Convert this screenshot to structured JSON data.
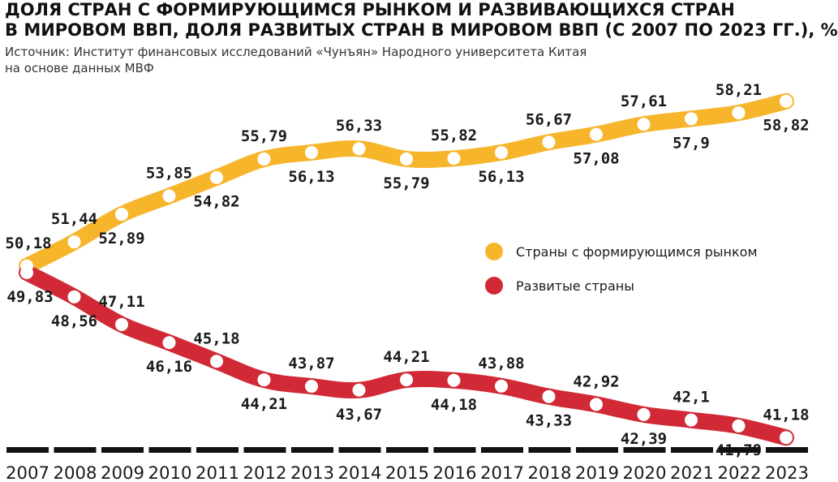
{
  "title_lines": [
    "ДОЛЯ СТРАН С ФОРМИРУЮЩИМСЯ РЫНКОМ И РАЗВИВАЮЩИХСЯ СТРАН",
    "В МИРОВОМ ВВП, ДОЛЯ РАЗВИТЫХ СТРАН В МИРОВОМ ВВП (С 2007 ПО 2023 ГГ.), %"
  ],
  "subtitle_lines": [
    "Источник: Институт финансовых исследований «Чунъян» Народного университета Китая",
    "на основе данных МВФ"
  ],
  "colors": {
    "emerging": "#f7b52c",
    "developed": "#d12a36",
    "marker": "#ffffff",
    "axis": "#111111",
    "text": "#1a1a1a"
  },
  "chart_data": {
    "type": "line",
    "title": "ДОЛЯ СТРАН С ФОРМИРУЮЩИМСЯ РЫНКОМ И РАЗВИВАЮЩИХСЯ СТРАН В МИРОВОМ ВВП, ДОЛЯ РАЗВИТЫХ СТРАН В МИРОВОМ ВВП (С 2007 ПО 2023 ГГ.), %",
    "x": [
      "2007",
      "2008",
      "2009",
      "2010",
      "2011",
      "2012",
      "2013",
      "2014",
      "2015",
      "2016",
      "2017",
      "2018",
      "2019",
      "2020",
      "2021",
      "2022",
      "2023"
    ],
    "series": [
      {
        "name": "Страны с формирующимся рынком",
        "values": [
          50.18,
          51.44,
          52.89,
          53.85,
          54.82,
          55.79,
          56.13,
          56.33,
          55.79,
          55.82,
          56.13,
          56.67,
          57.08,
          57.61,
          57.9,
          58.21,
          58.82
        ],
        "labels": [
          "50,18",
          "51,44",
          "52,89",
          "53,85",
          "54,82",
          "55,79",
          "56,13",
          "56,33",
          "55,79",
          "55,82",
          "56,13",
          "56,67",
          "57,08",
          "57,61",
          "57,9",
          "58,21",
          "58,82"
        ]
      },
      {
        "name": "Развитые страны",
        "values": [
          49.83,
          48.56,
          47.11,
          46.16,
          45.18,
          44.21,
          43.87,
          43.67,
          44.21,
          44.18,
          43.88,
          43.33,
          42.92,
          42.39,
          42.1,
          41.79,
          41.18
        ],
        "labels": [
          "49,83",
          "48,56",
          "47,11",
          "46,16",
          "45,18",
          "44,21",
          "43,87",
          "43,67",
          "44,21",
          "44,18",
          "43,88",
          "43,33",
          "42,92",
          "42,39",
          "42,1",
          "41,79",
          "41,18"
        ]
      }
    ],
    "legend_position": "right",
    "grid": false
  }
}
